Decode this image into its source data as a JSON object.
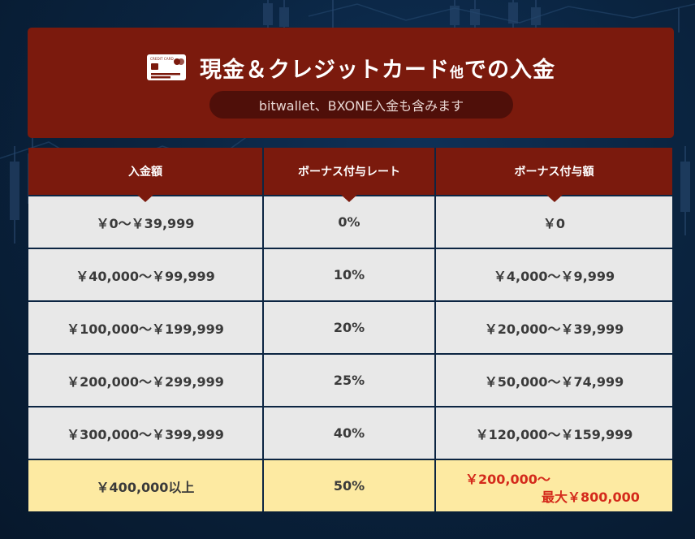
{
  "header": {
    "icon": "credit-card-icon",
    "card_icon_text": "CREDIT CARD",
    "title_main": "現金＆クレジットカード",
    "title_small": "他",
    "title_end": "での入金",
    "subtitle": "bitwallet、BXONE入金も含みます"
  },
  "table": {
    "headers": [
      "入金額",
      "ボーナス付与レート",
      "ボーナス付与額"
    ],
    "rows": [
      {
        "amount": "￥0～￥39,999",
        "rate": "0%",
        "bonus": "￥0"
      },
      {
        "amount": "￥40,000～￥99,999",
        "rate": "10%",
        "bonus": "￥4,000～￥9,999"
      },
      {
        "amount": "￥100,000～￥199,999",
        "rate": "20%",
        "bonus": "￥20,000～￥39,999"
      },
      {
        "amount": "￥200,000～￥299,999",
        "rate": "25%",
        "bonus": "￥50,000～￥74,999"
      },
      {
        "amount": "￥300,000～￥399,999",
        "rate": "40%",
        "bonus": "￥120,000～￥159,999"
      }
    ],
    "last_row": {
      "amount": "￥400,000以上",
      "rate": "50%",
      "bonus_top": "￥200,000～",
      "bonus_bottom": "最大￥800,000"
    }
  },
  "colors": {
    "header_bg": "#7b1a0d",
    "cell_bg": "#e8e8e8",
    "highlight_bg": "#fdeaa2",
    "accent_red": "#d42a1b",
    "background": "#0a2440"
  }
}
